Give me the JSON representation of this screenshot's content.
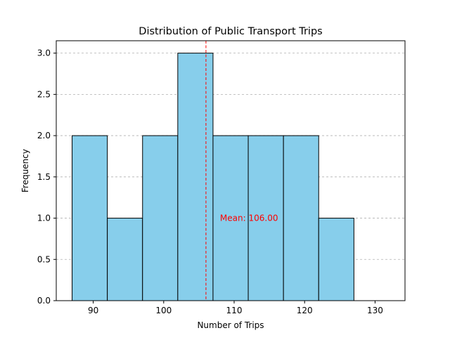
{
  "chart_data": {
    "type": "bar",
    "title": "Distribution of Public Transport Trips",
    "xlabel": "Number of Trips",
    "ylabel": "Frequency",
    "bin_edges": [
      87,
      92,
      97,
      102,
      107,
      112,
      117,
      122,
      127,
      132
    ],
    "values": [
      2,
      1,
      2,
      3,
      2,
      2,
      2,
      1,
      0
    ],
    "xlim": [
      84.75,
      134.25
    ],
    "ylim": [
      0,
      3.15
    ],
    "x_ticks": [
      90,
      100,
      110,
      120,
      130
    ],
    "x_tick_labels": [
      "90",
      "100",
      "110",
      "120",
      "130"
    ],
    "y_ticks": [
      0,
      0.5,
      1.0,
      1.5,
      2.0,
      2.5,
      3.0
    ],
    "y_tick_labels": [
      "0.0",
      "0.5",
      "1.0",
      "1.5",
      "2.0",
      "2.5",
      "3.0"
    ],
    "grid": "y-dashed",
    "bar_color": "#87ceeb",
    "edge_color": "#000000",
    "mean": {
      "value": 106,
      "label": "Mean: 106.00",
      "label_y": 1.0,
      "color": "#ff0000"
    }
  }
}
